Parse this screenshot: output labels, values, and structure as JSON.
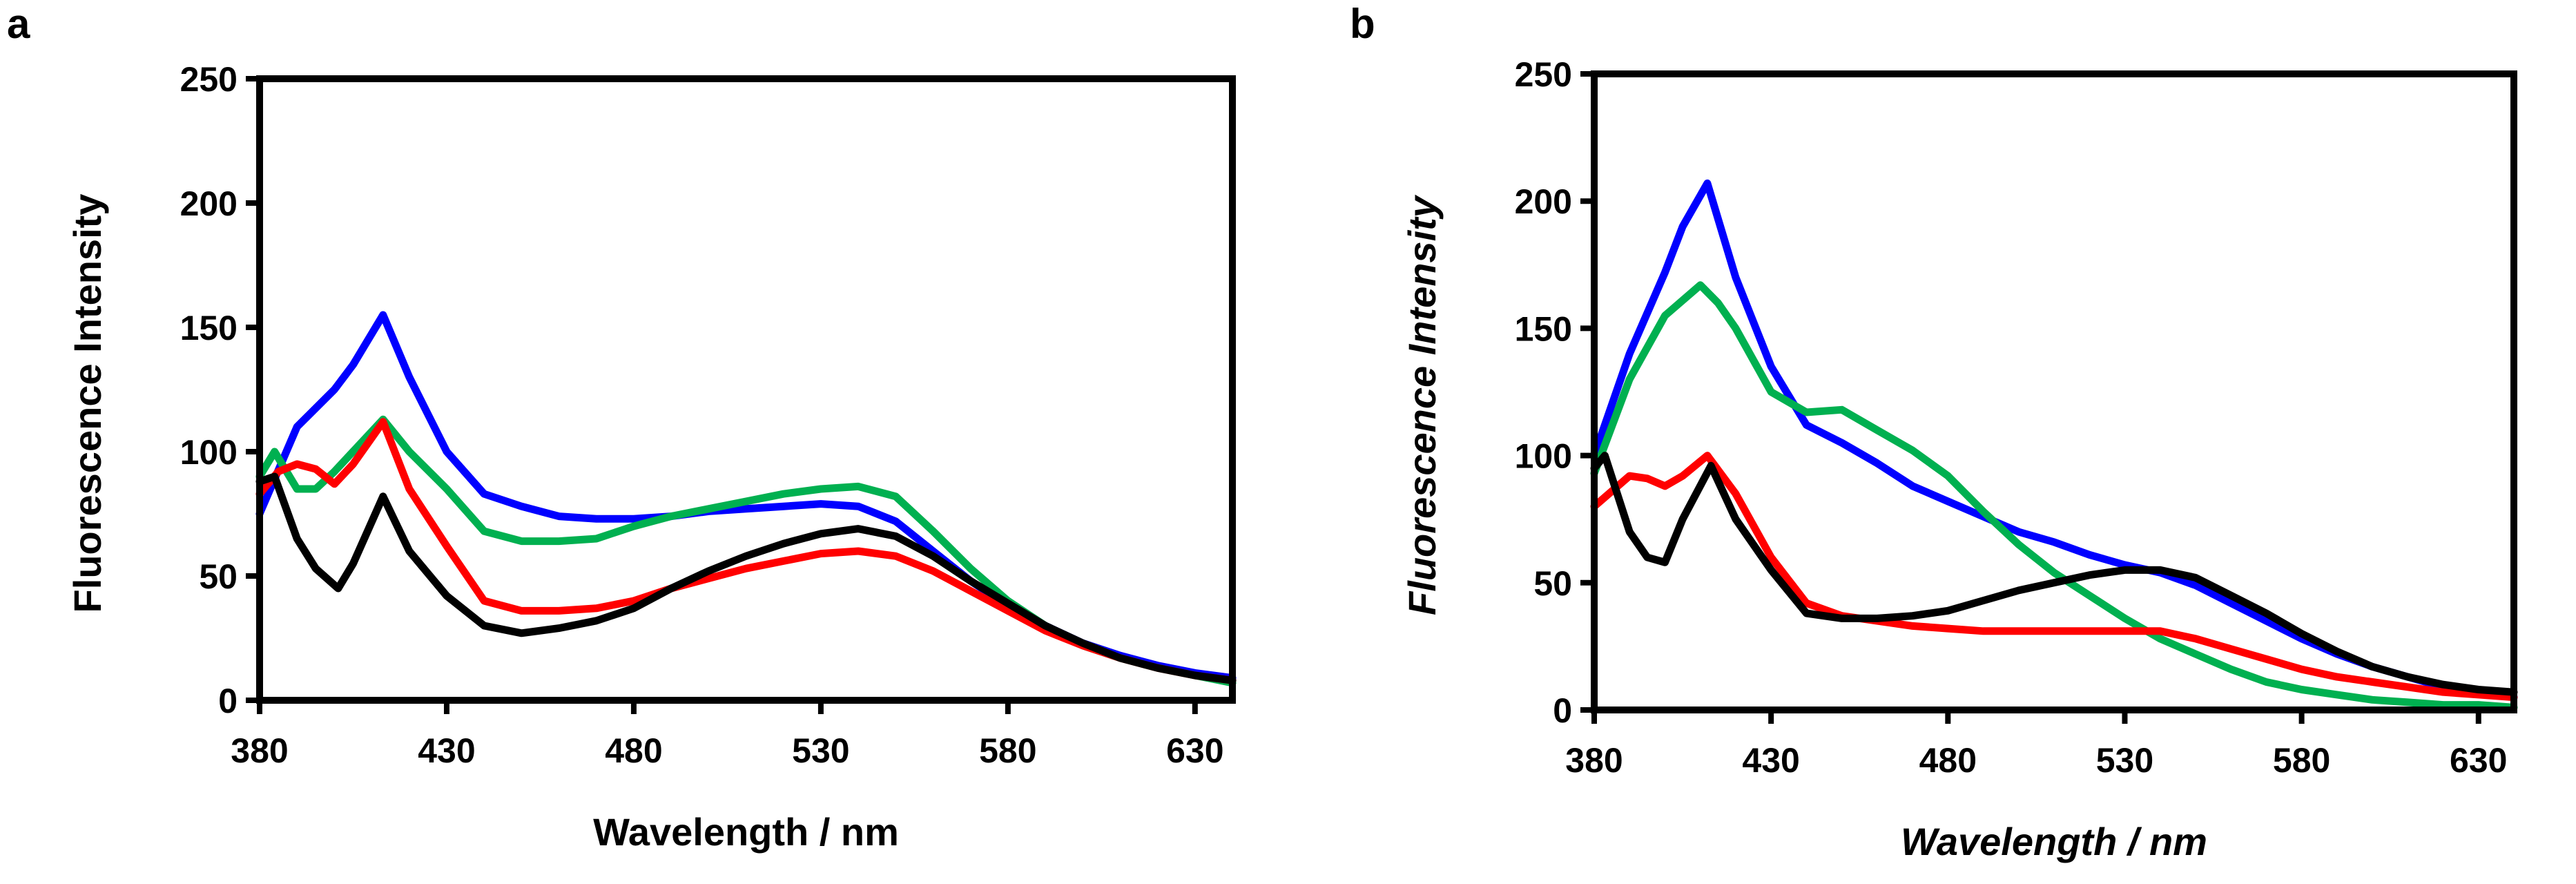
{
  "chart_data": [
    {
      "type": "line",
      "panel_label": "a",
      "xlabel": "Wavelength / nm",
      "ylabel": "Fluorescence Intensity",
      "italic_labels": false,
      "xlim": [
        380,
        640
      ],
      "ylim": [
        0,
        250
      ],
      "xticks": [
        380,
        430,
        480,
        530,
        580,
        630
      ],
      "yticks": [
        0,
        50,
        100,
        150,
        200,
        250
      ],
      "grid": false,
      "series": [
        {
          "name": "blue",
          "color": "#0000ff",
          "x": [
            380,
            390,
            400,
            405,
            413,
            420,
            430,
            440,
            450,
            460,
            470,
            480,
            490,
            500,
            510,
            520,
            530,
            540,
            550,
            560,
            570,
            580,
            590,
            600,
            610,
            620,
            630,
            640
          ],
          "y": [
            75,
            110,
            125,
            135,
            155,
            130,
            100,
            83,
            78,
            74,
            73,
            73,
            74,
            76,
            77,
            78,
            79,
            78,
            72,
            60,
            48,
            38,
            30,
            23,
            18,
            14,
            11,
            9
          ]
        },
        {
          "name": "green",
          "color": "#00b050",
          "x": [
            380,
            384,
            390,
            395,
            400,
            413,
            420,
            430,
            440,
            450,
            460,
            470,
            480,
            490,
            500,
            510,
            520,
            530,
            540,
            550,
            560,
            570,
            580,
            590,
            600,
            610,
            620,
            630,
            640
          ],
          "y": [
            90,
            100,
            85,
            85,
            92,
            113,
            100,
            85,
            68,
            64,
            64,
            65,
            70,
            74,
            77,
            80,
            83,
            85,
            86,
            82,
            68,
            53,
            40,
            30,
            22,
            17,
            13,
            10,
            7
          ]
        },
        {
          "name": "red",
          "color": "#ff0000",
          "x": [
            380,
            385,
            390,
            395,
            400,
            405,
            413,
            420,
            430,
            440,
            450,
            460,
            470,
            480,
            490,
            500,
            510,
            520,
            530,
            540,
            550,
            560,
            570,
            580,
            590,
            600,
            610,
            620,
            630,
            640
          ],
          "y": [
            83,
            92,
            95,
            93,
            87,
            95,
            112,
            85,
            62,
            40,
            36,
            36,
            37,
            40,
            45,
            49,
            53,
            56,
            59,
            60,
            58,
            52,
            44,
            36,
            28,
            22,
            17,
            13,
            10,
            8
          ]
        },
        {
          "name": "black",
          "color": "#000000",
          "x": [
            380,
            384,
            390,
            395,
            401,
            405,
            413,
            420,
            430,
            440,
            450,
            460,
            470,
            480,
            490,
            500,
            510,
            520,
            530,
            540,
            550,
            560,
            570,
            580,
            590,
            600,
            610,
            620,
            630,
            640
          ],
          "y": [
            88,
            90,
            65,
            53,
            45,
            55,
            82,
            60,
            42,
            30,
            27,
            29,
            32,
            37,
            45,
            52,
            58,
            63,
            67,
            69,
            66,
            58,
            48,
            39,
            30,
            23,
            17,
            13,
            10,
            8
          ]
        }
      ]
    },
    {
      "type": "line",
      "panel_label": "b",
      "xlabel": "Wavelength / nm",
      "ylabel": "Fluorescence Intensity",
      "italic_labels": true,
      "xlim": [
        380,
        640
      ],
      "ylim": [
        0,
        250
      ],
      "xticks": [
        380,
        430,
        480,
        530,
        580,
        630
      ],
      "yticks": [
        0,
        50,
        100,
        150,
        200,
        250
      ],
      "grid": false,
      "series": [
        {
          "name": "blue",
          "color": "#0000ff",
          "x": [
            380,
            390,
            400,
            405,
            412,
            420,
            430,
            440,
            450,
            460,
            470,
            480,
            490,
            500,
            510,
            520,
            530,
            540,
            550,
            560,
            570,
            580,
            590,
            600,
            610,
            620,
            630,
            640
          ],
          "y": [
            100,
            140,
            172,
            190,
            207,
            170,
            135,
            112,
            105,
            97,
            88,
            82,
            76,
            70,
            66,
            61,
            57,
            54,
            49,
            42,
            35,
            28,
            22,
            17,
            13,
            9,
            7,
            5
          ]
        },
        {
          "name": "green",
          "color": "#00b050",
          "x": [
            380,
            390,
            400,
            410,
            415,
            420,
            430,
            440,
            450,
            460,
            470,
            480,
            490,
            500,
            510,
            520,
            530,
            540,
            550,
            560,
            570,
            580,
            590,
            600,
            610,
            620,
            630,
            640
          ],
          "y": [
            93,
            130,
            155,
            167,
            160,
            150,
            125,
            117,
            118,
            110,
            102,
            92,
            78,
            65,
            54,
            45,
            36,
            28,
            22,
            16,
            11,
            8,
            6,
            4,
            3,
            2,
            2,
            1
          ]
        },
        {
          "name": "red",
          "color": "#ff0000",
          "x": [
            380,
            390,
            395,
            400,
            405,
            412,
            420,
            430,
            440,
            450,
            460,
            470,
            480,
            490,
            500,
            510,
            520,
            530,
            540,
            550,
            560,
            570,
            580,
            590,
            600,
            610,
            620,
            630,
            640
          ],
          "y": [
            80,
            92,
            91,
            88,
            92,
            100,
            85,
            60,
            42,
            37,
            35,
            33,
            32,
            31,
            31,
            31,
            31,
            31,
            31,
            28,
            24,
            20,
            16,
            13,
            11,
            9,
            7,
            6,
            5
          ]
        },
        {
          "name": "black",
          "color": "#000000",
          "x": [
            380,
            383,
            390,
            395,
            400,
            405,
            413,
            420,
            430,
            440,
            450,
            460,
            470,
            480,
            490,
            500,
            510,
            520,
            530,
            540,
            550,
            560,
            570,
            580,
            590,
            600,
            610,
            620,
            630,
            640
          ],
          "y": [
            95,
            100,
            70,
            60,
            58,
            75,
            96,
            75,
            55,
            38,
            36,
            36,
            37,
            39,
            43,
            47,
            50,
            53,
            55,
            55,
            52,
            45,
            38,
            30,
            23,
            17,
            13,
            10,
            8,
            7
          ]
        }
      ]
    }
  ]
}
